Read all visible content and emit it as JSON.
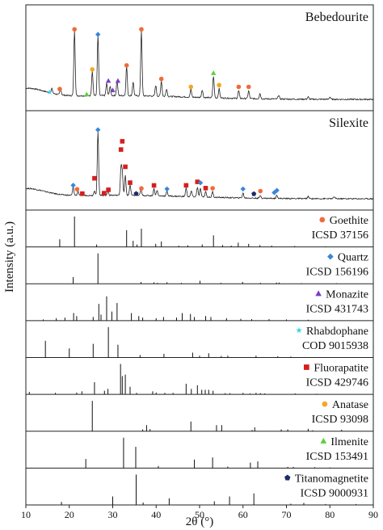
{
  "chart_data": {
    "type": "line",
    "xlabel": "2θ (°)",
    "ylabel": "Intensity (a.u.)",
    "xlim": [
      10,
      90
    ],
    "x_ticks": [
      "10",
      "20",
      "30",
      "40",
      "50",
      "60",
      "70",
      "80",
      "90"
    ],
    "legend_placement": "each reference panel, top-right",
    "colors": {
      "goethite": "#f06a3b",
      "quartz": "#3a86d9",
      "monazite": "#7b3fc4",
      "rhabdophane": "#3fd6e6",
      "fluorapatite": "#d41f1f",
      "anatase": "#f5a623",
      "ilmenite": "#5ad13a",
      "titanomagnetite": "#1f2a6b"
    },
    "samples": [
      {
        "name": "Bebedourite",
        "peaks": [
          {
            "x": 16.0,
            "y": 0.06
          },
          {
            "x": 18.0,
            "y": 0.08
          },
          {
            "x": 21.2,
            "y": 0.85
          },
          {
            "x": 25.3,
            "y": 0.32
          },
          {
            "x": 26.6,
            "y": 0.78
          },
          {
            "x": 28.6,
            "y": 0.16
          },
          {
            "x": 29.4,
            "y": 0.12
          },
          {
            "x": 31.0,
            "y": 0.2
          },
          {
            "x": 33.2,
            "y": 0.38
          },
          {
            "x": 34.7,
            "y": 0.18
          },
          {
            "x": 36.6,
            "y": 0.85
          },
          {
            "x": 39.9,
            "y": 0.14
          },
          {
            "x": 41.2,
            "y": 0.2
          },
          {
            "x": 42.4,
            "y": 0.1
          },
          {
            "x": 48.0,
            "y": 0.1
          },
          {
            "x": 50.6,
            "y": 0.1
          },
          {
            "x": 53.2,
            "y": 0.28
          },
          {
            "x": 54.5,
            "y": 0.12
          },
          {
            "x": 59.0,
            "y": 0.1
          },
          {
            "x": 61.3,
            "y": 0.1
          },
          {
            "x": 63.9,
            "y": 0.07
          },
          {
            "x": 68.2,
            "y": 0.05
          },
          {
            "x": 75.0,
            "y": 0.03
          },
          {
            "x": 80.0,
            "y": 0.03
          }
        ],
        "markers": [
          {
            "phase": "rhabdophane",
            "x": 15.5
          },
          {
            "phase": "goethite",
            "x": 17.8
          },
          {
            "phase": "goethite",
            "x": 21.2
          },
          {
            "phase": "anatase",
            "x": 25.3
          },
          {
            "phase": "quartz",
            "x": 26.6
          },
          {
            "phase": "ilmenite",
            "x": 24.0
          },
          {
            "phase": "monazite",
            "x": 29.0
          },
          {
            "phase": "monazite",
            "x": 30.0
          },
          {
            "phase": "monazite",
            "x": 31.2
          },
          {
            "phase": "goethite",
            "x": 33.2
          },
          {
            "phase": "goethite",
            "x": 36.6
          },
          {
            "phase": "goethite",
            "x": 41.2
          },
          {
            "phase": "anatase",
            "x": 48.0
          },
          {
            "phase": "ilmenite",
            "x": 53.2
          },
          {
            "phase": "anatase",
            "x": 54.5
          },
          {
            "phase": "goethite",
            "x": 59.0
          },
          {
            "phase": "goethite",
            "x": 61.3
          }
        ]
      },
      {
        "name": "Silexite",
        "peaks": [
          {
            "x": 20.9,
            "y": 0.12
          },
          {
            "x": 22.0,
            "y": 0.06
          },
          {
            "x": 25.8,
            "y": 0.07
          },
          {
            "x": 26.6,
            "y": 0.9
          },
          {
            "x": 28.9,
            "y": 0.06
          },
          {
            "x": 31.9,
            "y": 0.38
          },
          {
            "x": 32.2,
            "y": 0.3
          },
          {
            "x": 32.9,
            "y": 0.28
          },
          {
            "x": 34.0,
            "y": 0.15
          },
          {
            "x": 36.5,
            "y": 0.08
          },
          {
            "x": 39.5,
            "y": 0.1
          },
          {
            "x": 40.2,
            "y": 0.08
          },
          {
            "x": 42.5,
            "y": 0.07
          },
          {
            "x": 46.9,
            "y": 0.12
          },
          {
            "x": 48.1,
            "y": 0.08
          },
          {
            "x": 49.5,
            "y": 0.14
          },
          {
            "x": 50.2,
            "y": 0.12
          },
          {
            "x": 51.4,
            "y": 0.08
          },
          {
            "x": 53.0,
            "y": 0.08
          },
          {
            "x": 60.0,
            "y": 0.07
          },
          {
            "x": 64.0,
            "y": 0.04
          },
          {
            "x": 67.8,
            "y": 0.05
          },
          {
            "x": 75.0,
            "y": 0.03
          },
          {
            "x": 81.0,
            "y": 0.03
          }
        ],
        "markers": [
          {
            "phase": "quartz",
            "x": 20.9
          },
          {
            "phase": "goethite",
            "x": 21.8
          },
          {
            "phase": "fluorapatite",
            "x": 23.0
          },
          {
            "phase": "fluorapatite",
            "x": 25.8
          },
          {
            "phase": "quartz",
            "x": 26.6
          },
          {
            "phase": "fluorapatite",
            "x": 28.0
          },
          {
            "phase": "fluorapatite",
            "x": 29.0
          },
          {
            "phase": "fluorapatite",
            "x": 31.9
          },
          {
            "phase": "fluorapatite",
            "x": 32.2
          },
          {
            "phase": "fluorapatite",
            "x": 32.9
          },
          {
            "phase": "fluorapatite",
            "x": 34.0
          },
          {
            "phase": "titanomagnetite",
            "x": 35.4
          },
          {
            "phase": "goethite",
            "x": 36.6
          },
          {
            "phase": "fluorapatite",
            "x": 39.5
          },
          {
            "phase": "quartz",
            "x": 42.5
          },
          {
            "phase": "fluorapatite",
            "x": 46.9
          },
          {
            "phase": "fluorapatite",
            "x": 49.5
          },
          {
            "phase": "quartz",
            "x": 50.2
          },
          {
            "phase": "fluorapatite",
            "x": 51.4
          },
          {
            "phase": "goethite",
            "x": 53.0
          },
          {
            "phase": "quartz",
            "x": 60.0
          },
          {
            "phase": "titanomagnetite",
            "x": 62.5
          },
          {
            "phase": "goethite",
            "x": 64.0
          },
          {
            "phase": "quartz",
            "x": 67.2
          },
          {
            "phase": "quartz",
            "x": 67.8
          }
        ]
      }
    ],
    "references": [
      {
        "phase": "goethite",
        "name": "Goethite",
        "card": "ICSD 37156",
        "sticks": [
          [
            17.8,
            0.25
          ],
          [
            21.2,
            1.0
          ],
          [
            26.3,
            0.08
          ],
          [
            33.2,
            0.55
          ],
          [
            34.7,
            0.2
          ],
          [
            35.6,
            0.08
          ],
          [
            36.6,
            0.6
          ],
          [
            39.9,
            0.1
          ],
          [
            41.2,
            0.18
          ],
          [
            45.2,
            0.04
          ],
          [
            47.3,
            0.05
          ],
          [
            50.6,
            0.08
          ],
          [
            53.2,
            0.38
          ],
          [
            55.3,
            0.06
          ],
          [
            57.3,
            0.04
          ],
          [
            58.9,
            0.14
          ],
          [
            61.3,
            0.1
          ],
          [
            63.9,
            0.06
          ],
          [
            66.6,
            0.04
          ],
          [
            71.9,
            0.03
          ],
          [
            79.0,
            0.02
          ]
        ]
      },
      {
        "phase": "quartz",
        "name": "Quartz",
        "card": "ICSD 156196",
        "sticks": [
          [
            20.9,
            0.22
          ],
          [
            26.6,
            1.0
          ],
          [
            36.5,
            0.06
          ],
          [
            39.5,
            0.05
          ],
          [
            40.3,
            0.03
          ],
          [
            42.5,
            0.05
          ],
          [
            45.8,
            0.03
          ],
          [
            50.1,
            0.1
          ],
          [
            54.9,
            0.03
          ],
          [
            59.9,
            0.06
          ],
          [
            64.0,
            0.03
          ],
          [
            67.7,
            0.04
          ],
          [
            68.3,
            0.04
          ],
          [
            73.5,
            0.02
          ],
          [
            81.5,
            0.02
          ]
        ]
      },
      {
        "phase": "monazite",
        "name": "Monazite",
        "card": "ICSD 431743",
        "sticks": [
          [
            14.0,
            0.04
          ],
          [
            17.0,
            0.08
          ],
          [
            19.0,
            0.1
          ],
          [
            21.0,
            0.25
          ],
          [
            21.7,
            0.15
          ],
          [
            25.5,
            0.12
          ],
          [
            26.8,
            0.55
          ],
          [
            27.3,
            0.2
          ],
          [
            28.6,
            0.8
          ],
          [
            29.8,
            0.3
          ],
          [
            31.0,
            0.58
          ],
          [
            34.3,
            0.25
          ],
          [
            36.0,
            0.15
          ],
          [
            36.9,
            0.1
          ],
          [
            40.0,
            0.08
          ],
          [
            41.7,
            0.12
          ],
          [
            44.7,
            0.1
          ],
          [
            46.0,
            0.25
          ],
          [
            47.9,
            0.22
          ],
          [
            48.8,
            0.12
          ],
          [
            51.4,
            0.15
          ],
          [
            52.6,
            0.12
          ],
          [
            56.2,
            0.08
          ],
          [
            59.5,
            0.06
          ],
          [
            62.0,
            0.05
          ],
          [
            66.0,
            0.05
          ],
          [
            70.0,
            0.04
          ],
          [
            75.0,
            0.03
          ]
        ]
      },
      {
        "phase": "rhabdophane",
        "name": "Rhabdophane",
        "card": "COD 9015938",
        "sticks": [
          [
            14.5,
            0.55
          ],
          [
            20.0,
            0.3
          ],
          [
            25.5,
            0.45
          ],
          [
            29.0,
            1.0
          ],
          [
            31.2,
            0.42
          ],
          [
            36.3,
            0.08
          ],
          [
            41.8,
            0.12
          ],
          [
            48.4,
            0.16
          ],
          [
            50.0,
            0.06
          ],
          [
            52.1,
            0.14
          ],
          [
            55.0,
            0.05
          ],
          [
            56.5,
            0.06
          ],
          [
            63.0,
            0.06
          ],
          [
            68.0,
            0.04
          ],
          [
            71.0,
            0.03
          ]
        ]
      },
      {
        "phase": "fluorapatite",
        "name": "Fluorapatite",
        "card": "ICSD 429746",
        "sticks": [
          [
            10.8,
            0.08
          ],
          [
            16.8,
            0.05
          ],
          [
            21.7,
            0.06
          ],
          [
            22.9,
            0.1
          ],
          [
            25.8,
            0.4
          ],
          [
            28.1,
            0.12
          ],
          [
            28.9,
            0.18
          ],
          [
            31.8,
            1.0
          ],
          [
            32.2,
            0.6
          ],
          [
            32.9,
            0.65
          ],
          [
            34.0,
            0.25
          ],
          [
            35.5,
            0.05
          ],
          [
            39.2,
            0.1
          ],
          [
            40.0,
            0.06
          ],
          [
            42.0,
            0.05
          ],
          [
            43.9,
            0.05
          ],
          [
            46.9,
            0.35
          ],
          [
            48.1,
            0.18
          ],
          [
            49.5,
            0.3
          ],
          [
            50.5,
            0.15
          ],
          [
            51.3,
            0.15
          ],
          [
            52.1,
            0.15
          ],
          [
            53.1,
            0.12
          ],
          [
            55.9,
            0.04
          ],
          [
            57.0,
            0.04
          ],
          [
            60.0,
            0.05
          ],
          [
            61.6,
            0.03
          ],
          [
            63.0,
            0.05
          ],
          [
            64.0,
            0.04
          ],
          [
            65.0,
            0.03
          ],
          [
            72.0,
            0.03
          ],
          [
            77.0,
            0.02
          ]
        ]
      },
      {
        "phase": "anatase",
        "name": "Anatase",
        "card": "ICSD 93098",
        "sticks": [
          [
            25.3,
            1.0
          ],
          [
            36.9,
            0.06
          ],
          [
            37.8,
            0.2
          ],
          [
            38.6,
            0.07
          ],
          [
            48.0,
            0.32
          ],
          [
            53.9,
            0.2
          ],
          [
            55.1,
            0.2
          ],
          [
            62.1,
            0.04
          ],
          [
            62.7,
            0.13
          ],
          [
            68.8,
            0.06
          ],
          [
            70.3,
            0.06
          ],
          [
            75.0,
            0.08
          ],
          [
            76.0,
            0.03
          ],
          [
            82.7,
            0.05
          ]
        ]
      },
      {
        "phase": "ilmenite",
        "name": "Ilmenite",
        "card": "ICSD 153491",
        "sticks": [
          [
            23.8,
            0.3
          ],
          [
            32.5,
            1.0
          ],
          [
            35.3,
            0.7
          ],
          [
            40.5,
            0.07
          ],
          [
            48.8,
            0.28
          ],
          [
            53.0,
            0.35
          ],
          [
            56.5,
            0.05
          ],
          [
            61.7,
            0.18
          ],
          [
            63.4,
            0.22
          ],
          [
            70.3,
            0.04
          ],
          [
            71.6,
            0.04
          ],
          [
            76.5,
            0.03
          ],
          [
            80.0,
            0.02
          ]
        ]
      },
      {
        "phase": "titanomagnetite",
        "name": "Titanomagnetite",
        "card": "ICSD 9000931",
        "sticks": [
          [
            18.2,
            0.1
          ],
          [
            30.0,
            0.28
          ],
          [
            35.4,
            1.0
          ],
          [
            37.0,
            0.08
          ],
          [
            43.0,
            0.22
          ],
          [
            53.4,
            0.12
          ],
          [
            56.9,
            0.28
          ],
          [
            62.5,
            0.38
          ],
          [
            71.0,
            0.04
          ],
          [
            74.0,
            0.07
          ],
          [
            79.0,
            0.03
          ],
          [
            86.0,
            0.03
          ]
        ]
      }
    ]
  }
}
